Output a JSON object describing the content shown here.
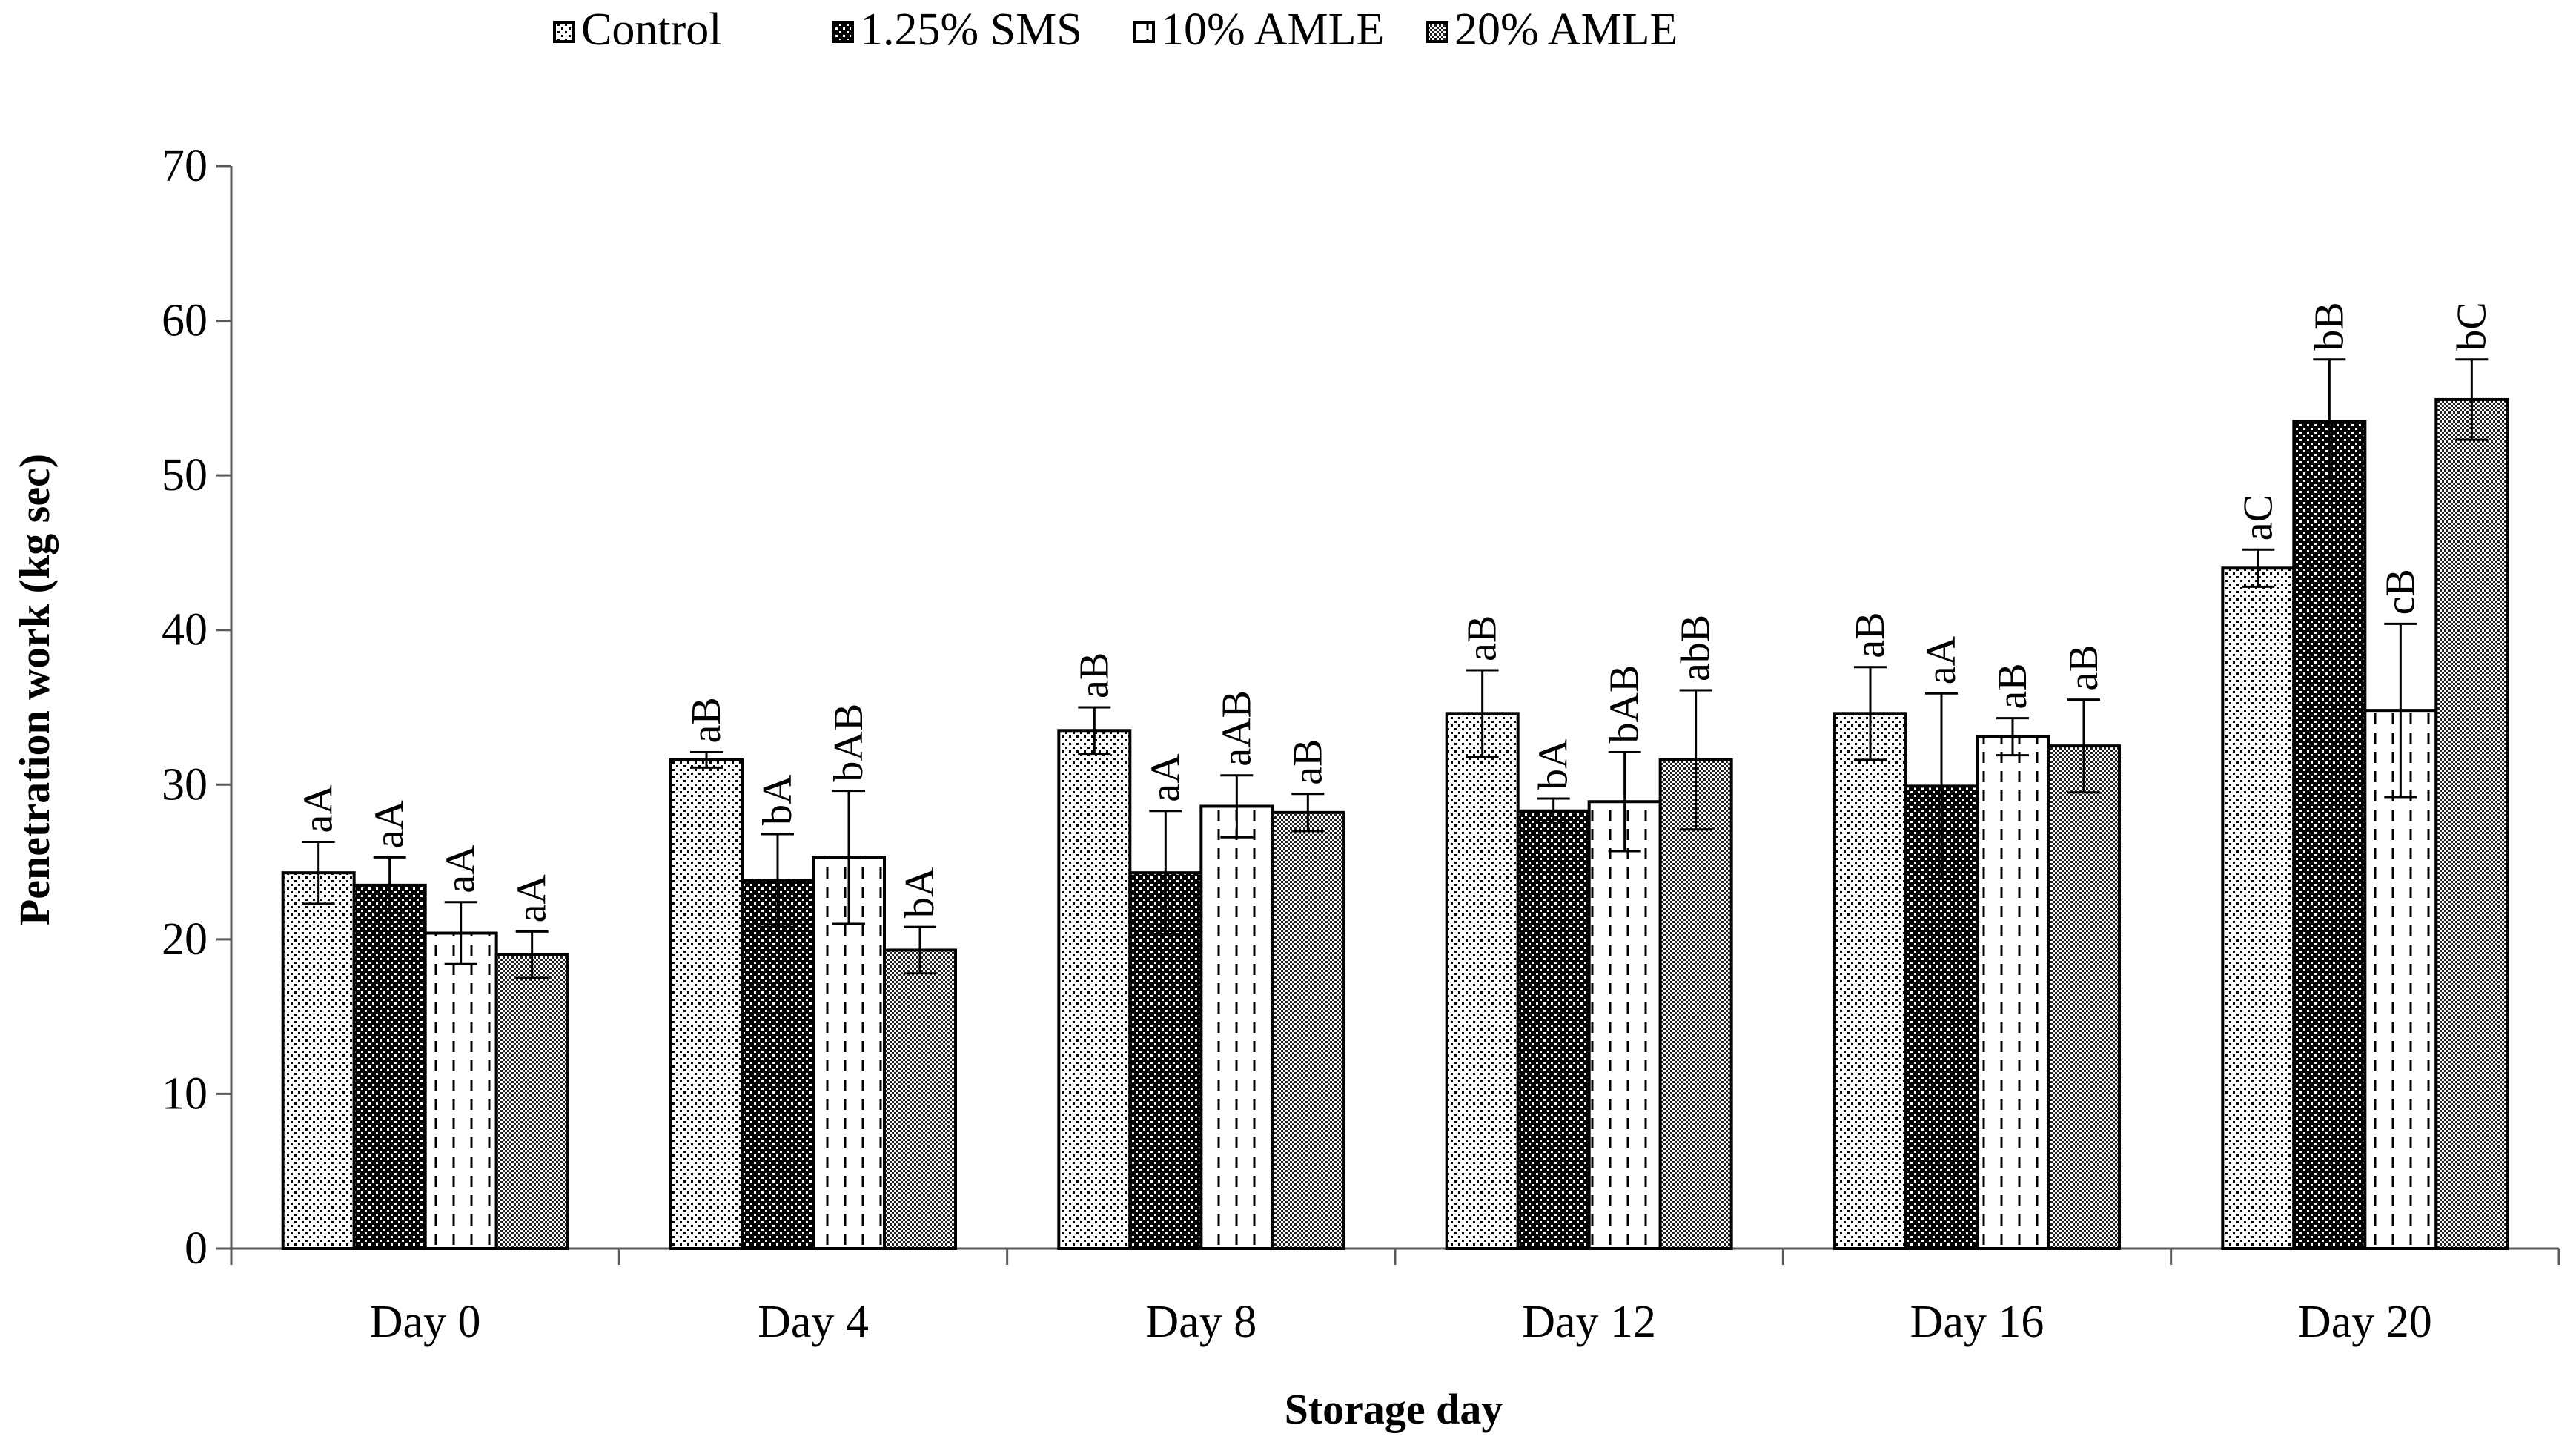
{
  "chart_data": {
    "type": "bar",
    "title": "",
    "xlabel": "Storage day",
    "ylabel": "Penetration work (kg sec)",
    "ylim": [
      0,
      70
    ],
    "yticks": [
      0,
      10,
      20,
      30,
      40,
      50,
      60,
      70
    ],
    "ytick_labels": [
      "0",
      "10",
      "20",
      "30",
      "40",
      "50",
      "60",
      "70"
    ],
    "grid": false,
    "legend_position": "top-center",
    "categories": [
      "Day 0",
      "Day 4",
      "Day 8",
      "Day 12",
      "Day 16",
      "Day 20"
    ],
    "series": [
      {
        "name": "Control",
        "pattern": "dots-sparse",
        "values": [
          24.3,
          31.6,
          33.5,
          34.6,
          34.6,
          44.0
        ],
        "errors": [
          2.0,
          0.5,
          1.5,
          2.8,
          3.0,
          1.2
        ],
        "labels": [
          "aA",
          "aB",
          "aB",
          "aB",
          "aB",
          "aC"
        ]
      },
      {
        "name": "1.25% SMS",
        "pattern": "dots-dense",
        "values": [
          23.5,
          23.8,
          24.3,
          28.3,
          29.9,
          53.5
        ],
        "errors": [
          1.8,
          3.0,
          4.0,
          0.8,
          6.0,
          4.0
        ],
        "labels": [
          "aA",
          "bA",
          "aA",
          "bA",
          "aA",
          "bB"
        ]
      },
      {
        "name": "10% AMLE",
        "pattern": "dashes",
        "values": [
          20.4,
          25.3,
          28.6,
          28.9,
          33.1,
          34.8
        ],
        "errors": [
          2.0,
          4.3,
          2.0,
          3.2,
          1.2,
          5.6
        ],
        "labels": [
          "aA",
          "bAB",
          "aAB",
          "bAB",
          "aB",
          "cB"
        ]
      },
      {
        "name": "20% AMLE",
        "pattern": "checker",
        "values": [
          19.0,
          19.3,
          28.2,
          31.6,
          32.5,
          54.9
        ],
        "errors": [
          1.5,
          1.5,
          1.2,
          4.5,
          3.0,
          2.6
        ],
        "labels": [
          "aA",
          "bA",
          "aB",
          "abB",
          "aB",
          "bC"
        ]
      }
    ]
  },
  "colors": {
    "axis": "#595959",
    "bar_stroke": "#000000",
    "text": "#000000",
    "background": "#ffffff"
  }
}
